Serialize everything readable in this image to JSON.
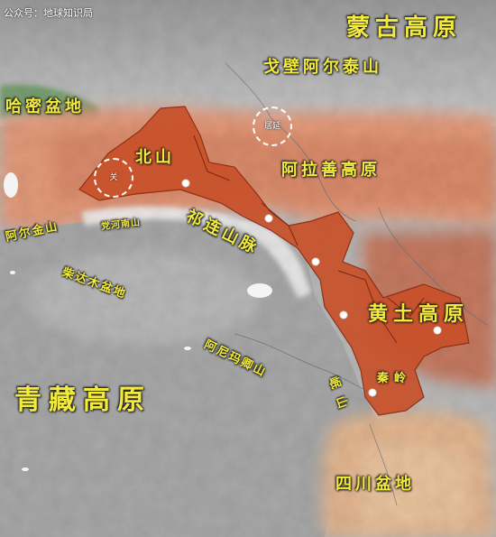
{
  "watermark": "公众号：地球知识局",
  "labels": {
    "mongolia_plateau": "蒙古高原",
    "gobi_altai": "戈壁阿尔泰山",
    "hami_basin": "哈密盆地",
    "beishan": "北山",
    "alxa_plateau": "阿拉善高原",
    "altun_mountains": "阿尔金山",
    "danghe_nanshan": "党河南山",
    "qilian_mountains": "祁连山脉",
    "qaidam_basin": "柴达木盆地",
    "loess_plateau": "黄土高原",
    "amne_machin": "阿尼玛卿山",
    "min_mountains": "岷山",
    "qinling": "秦岭",
    "qinghai_tibet_plateau": "青藏高原",
    "sichuan_basin": "四川盆地"
  },
  "markers": {
    "pass_west": "关",
    "pass_east": "居延"
  },
  "colors": {
    "corridor": "#c8512a",
    "label": "#f2ea3c",
    "plateau_gray": "#a9a9a9"
  }
}
